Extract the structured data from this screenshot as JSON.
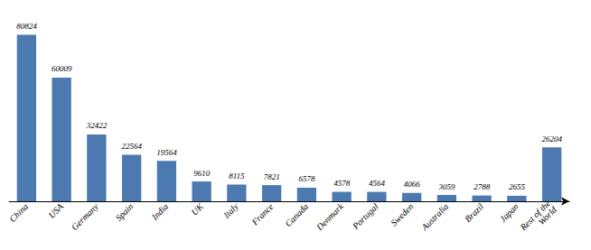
{
  "chart_data": {
    "type": "bar",
    "categories": [
      "China",
      "USA",
      "Germany",
      "Spain",
      "India",
      "UK",
      "Italy",
      "France",
      "Canada",
      "Denmark",
      "Portugal",
      "Sweden",
      "Australia",
      "Brazil",
      "Japan",
      "Rest of the\nWorld"
    ],
    "values": [
      80824,
      60009,
      32422,
      22564,
      19564,
      9610,
      8115,
      7821,
      6578,
      4578,
      4564,
      4066,
      3059,
      2788,
      2655,
      26204
    ],
    "color": "#4C7AB0",
    "ylim": [
      0,
      88000
    ],
    "data_labels": true,
    "tick_labels": "x",
    "grid": false
  }
}
